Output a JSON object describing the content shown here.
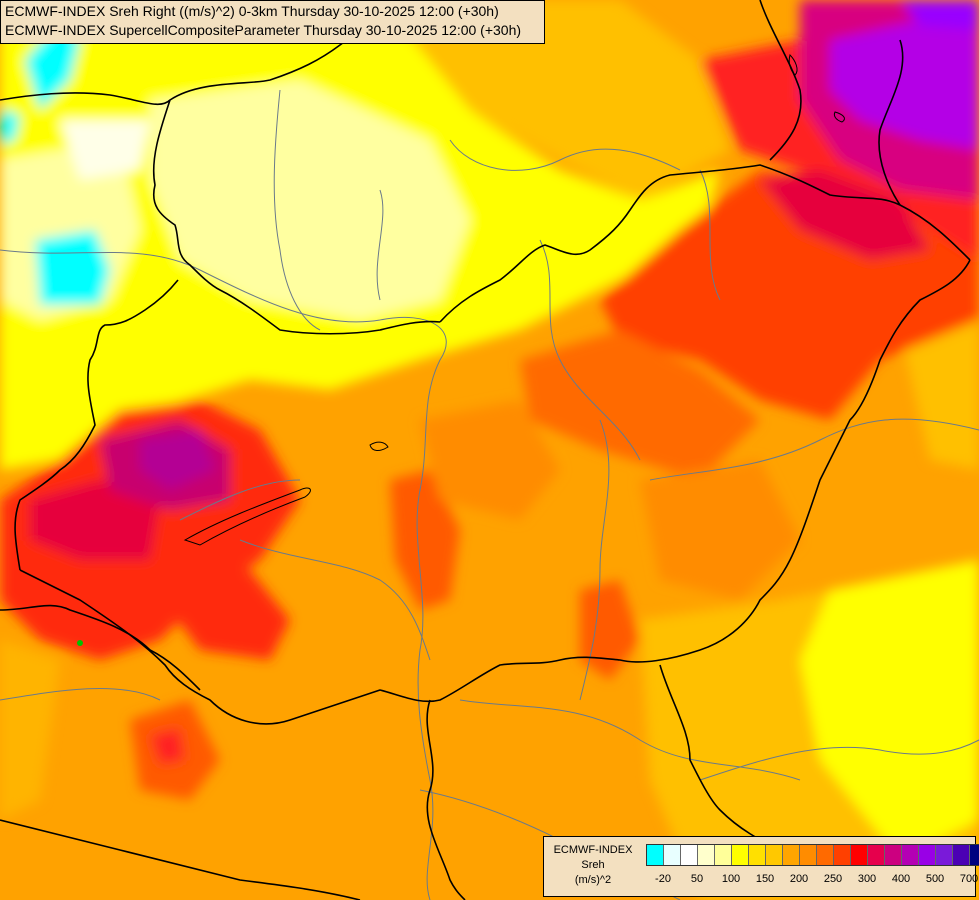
{
  "header": {
    "line1": "ECMWF-INDEX Sreh Right ((m/s)^2) 0-3km Thursday 30-10-2025 12:00 (+30h)",
    "line2": "ECMWF-INDEX SupercellCompositeParameter Thursday 30-10-2025 12:00 (+30h)"
  },
  "legend": {
    "line1": "ECMWF-INDEX",
    "line2": "Sreh",
    "line3": "(m/s)^2",
    "swatches": [
      "#00ffff",
      "#e8ffff",
      "#ffffff",
      "#ffffcc",
      "#ffff99",
      "#ffff00",
      "#ffe000",
      "#ffc800",
      "#ffa500",
      "#ff8c00",
      "#ff6a00",
      "#ff4000",
      "#ff0000",
      "#e6004c",
      "#cc0080",
      "#b400b4",
      "#9900e6",
      "#7a1ad9",
      "#4b00b4",
      "#000080"
    ],
    "ticks": [
      "-20",
      "50",
      "100",
      "150",
      "200",
      "250",
      "300",
      "400",
      "500",
      "700"
    ]
  },
  "colors": {
    "base_orange": "#ffa200",
    "yellow": "#ffff00",
    "pale": "#ffffc8",
    "red": "#ff4000",
    "magenta": "#cc0080",
    "purple": "#b400e6",
    "cyan": "#00ffff",
    "border": "#000000",
    "river": "#6a7a8a"
  }
}
